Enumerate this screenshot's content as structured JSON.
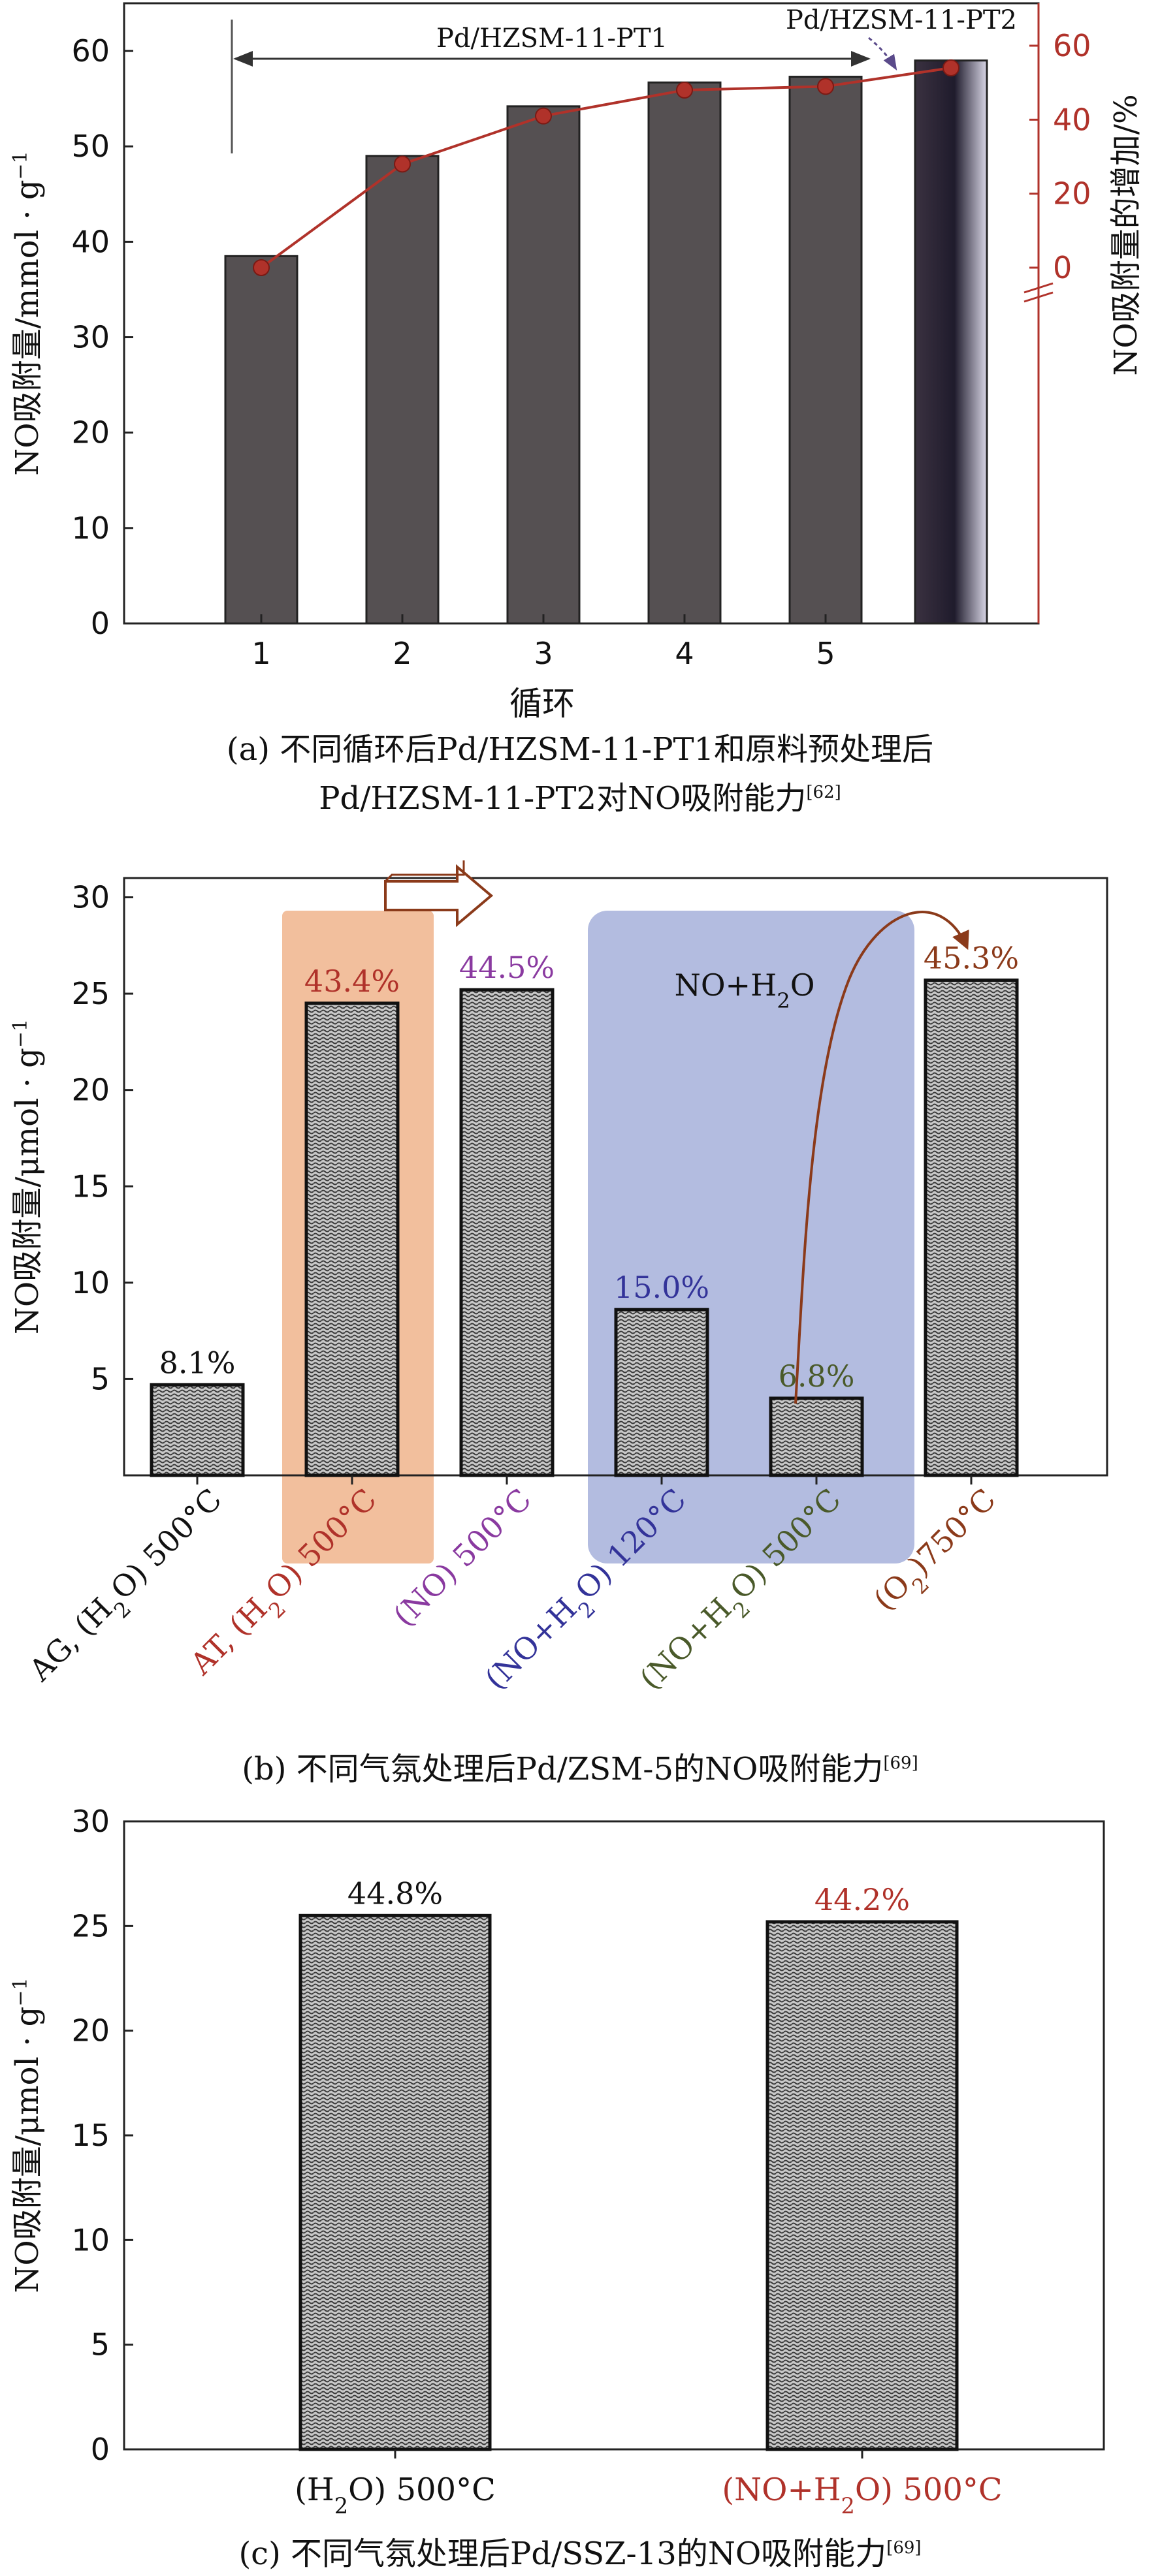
{
  "colors": {
    "bar": "#555052",
    "bar_dark": "#2b2732",
    "red": "#b0322a",
    "purple": "#8a3aa0",
    "blue": "#333399",
    "olive": "#4a5a2a",
    "brown": "#8b3a1a",
    "orange_box": "#f0b48c",
    "blue_box": "#9aa6d6"
  },
  "chart_data": [
    {
      "id": "a",
      "type": "bar",
      "caption_line1": "(a) 不同循环后Pd/HZSM-11-PT1和原料预处理后",
      "caption_line2": "Pd/HZSM-11-PT2对NO吸附能力",
      "caption_ref": "[62]",
      "xlabel": "循环",
      "ylabel_left": "NO吸附量/mmol · g",
      "ylabel_left_sup": "−1",
      "ylabel_right": "NO吸附量的增加/%",
      "ylim": [
        0,
        65
      ],
      "yticks": [
        0,
        10,
        20,
        30,
        40,
        50,
        60
      ],
      "y2ticks": [
        "0",
        "20",
        "40",
        "60"
      ],
      "categories": [
        "1",
        "2",
        "3",
        "4",
        "5",
        ""
      ],
      "values": [
        38.5,
        49.0,
        54.2,
        56.7,
        57.3,
        59.0
      ],
      "increase_series": {
        "name": "NO吸附量的增加/%",
        "values": [
          0,
          28,
          41,
          48,
          49,
          54
        ]
      },
      "annotation_pt1": "Pd/HZSM-11-PT1",
      "annotation_pt2": "Pd/HZSM-11-PT2"
    },
    {
      "id": "b",
      "type": "bar",
      "caption": "(b) 不同气氛处理后Pd/ZSM-5的NO吸附能力",
      "caption_ref": "[69]",
      "ylabel": "NO吸附量/μmol · g",
      "ylabel_sup": "−1",
      "ylim": [
        0,
        31
      ],
      "yticks": [
        5,
        10,
        15,
        20,
        25,
        30
      ],
      "categories": [
        "AG, (H₂O) 500°C",
        "AT, (H₂O) 500°C",
        "(NO) 500°C",
        "(NO+H₂O) 120°C",
        "(NO+H₂O) 500°C",
        "(O₂)750°C"
      ],
      "values": [
        4.7,
        24.5,
        25.2,
        8.6,
        4.0,
        25.7
      ],
      "labels": [
        "8.1%",
        "43.4%",
        "44.5%",
        "15.0%",
        "6.8%",
        "45.3%"
      ],
      "highlight_text": "NO+H₂O"
    },
    {
      "id": "c",
      "type": "bar",
      "caption": "(c) 不同气氛处理后Pd/SSZ-13的NO吸附能力",
      "caption_ref": "[69]",
      "ylabel": "NO吸附量/μmol · g",
      "ylabel_sup": "−1",
      "ylim": [
        0,
        30
      ],
      "yticks": [
        0,
        5,
        10,
        15,
        20,
        25,
        30
      ],
      "categories": [
        "(H₂O) 500°C",
        "(NO+H₂O) 500°C"
      ],
      "values": [
        25.5,
        25.2
      ],
      "labels": [
        "44.8%",
        "44.2%"
      ]
    }
  ]
}
